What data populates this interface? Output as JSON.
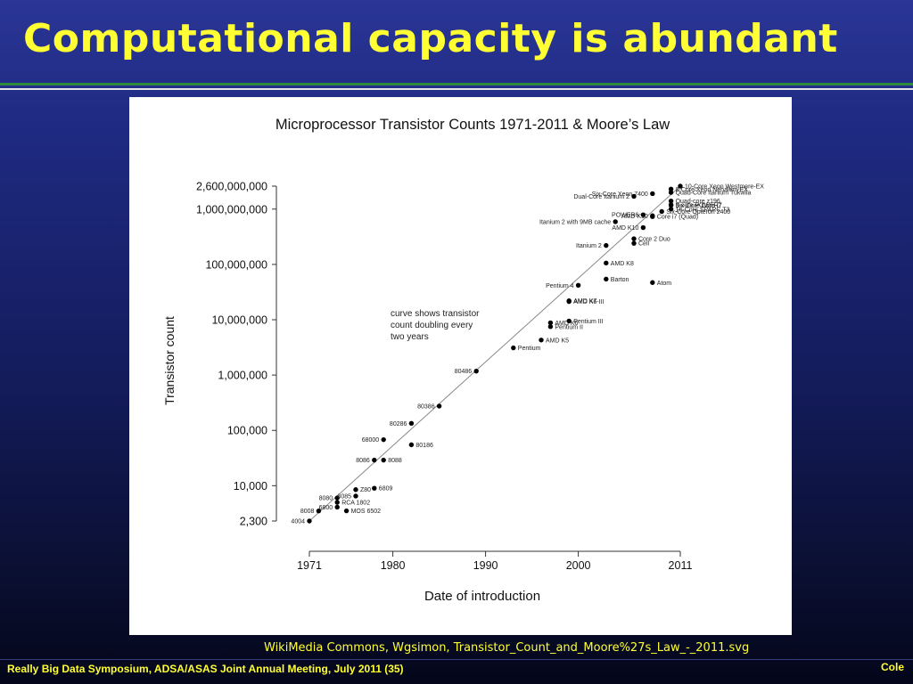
{
  "slide": {
    "title": "Computational capacity is abundant",
    "credit": "WikiMedia Commons, Wgsimon, Transistor_Count_and_Moore%27s_Law_-_2011.svg",
    "footer_left": "Really Big Data Symposium, ADSA/ASAS Joint Annual Meeting, July 2011 (35)",
    "footer_right": "Cole",
    "colors": {
      "title": "#ffff33",
      "background": "#1e2a80",
      "rule_green": "#2e8b3d"
    }
  },
  "chart_data": {
    "type": "scatter",
    "title": "Microprocessor Transistor Counts 1971-2011 & Moore’s Law",
    "xlabel": "Date of introduction",
    "ylabel": "Transistor count",
    "x_scale": "linear",
    "y_scale": "log",
    "xlim": [
      1971,
      2011
    ],
    "ylim": [
      2300,
      2600000000
    ],
    "x_ticks": [
      1971,
      1980,
      1990,
      2000,
      2011
    ],
    "y_ticks": [
      {
        "value": 2300,
        "label": "2,300"
      },
      {
        "value": 10000,
        "label": "10,000"
      },
      {
        "value": 100000,
        "label": "100,000"
      },
      {
        "value": 1000000,
        "label": "1,000,000"
      },
      {
        "value": 10000000,
        "label": "10,000,000"
      },
      {
        "value": 100000000,
        "label": "100,000,000"
      },
      {
        "value": 1000000000,
        "label": "1,000,000,000"
      },
      {
        "value": 2600000000,
        "label": "2,600,000,000"
      }
    ],
    "annotation": [
      "curve shows transistor",
      "count doubling every",
      "two years"
    ],
    "trend_line": {
      "x": [
        1971,
        2011
      ],
      "y": [
        2300,
        2600000000
      ]
    },
    "points": [
      {
        "label": "4004",
        "x": 1971,
        "y": 2300
      },
      {
        "label": "8008",
        "x": 1972,
        "y": 3500
      },
      {
        "label": "RCA 1802",
        "x": 1974,
        "y": 5000
      },
      {
        "label": "8080",
        "x": 1974,
        "y": 6000
      },
      {
        "label": "6800",
        "x": 1974,
        "y": 4100
      },
      {
        "label": "MOS 6502",
        "x": 1975,
        "y": 3510
      },
      {
        "label": "8085",
        "x": 1976,
        "y": 6500
      },
      {
        "label": "Z80",
        "x": 1976,
        "y": 8500
      },
      {
        "label": "6809",
        "x": 1978,
        "y": 9000
      },
      {
        "label": "8086",
        "x": 1978,
        "y": 29000
      },
      {
        "label": "8088",
        "x": 1979,
        "y": 29000
      },
      {
        "label": "68000",
        "x": 1979,
        "y": 68000
      },
      {
        "label": "80186",
        "x": 1982,
        "y": 55000
      },
      {
        "label": "80286",
        "x": 1982,
        "y": 134000
      },
      {
        "label": "80386",
        "x": 1985,
        "y": 275000
      },
      {
        "label": "80486",
        "x": 1989,
        "y": 1180000
      },
      {
        "label": "Pentium",
        "x": 1993,
        "y": 3100000
      },
      {
        "label": "AMD K5",
        "x": 1996,
        "y": 4300000
      },
      {
        "label": "Pentium II",
        "x": 1997,
        "y": 7500000
      },
      {
        "label": "AMD K6",
        "x": 1997,
        "y": 8800000
      },
      {
        "label": "Pentium III",
        "x": 1999,
        "y": 9500000
      },
      {
        "label": "AMD K6-III",
        "x": 1999,
        "y": 21300000
      },
      {
        "label": "AMD K7",
        "x": 1999,
        "y": 22000000
      },
      {
        "label": "Pentium 4",
        "x": 2000,
        "y": 42000000
      },
      {
        "label": "Barton",
        "x": 2003,
        "y": 54300000
      },
      {
        "label": "AMD K8",
        "x": 2003,
        "y": 105900000
      },
      {
        "label": "Itanium 2",
        "x": 2003,
        "y": 220000000
      },
      {
        "label": "Cell",
        "x": 2006,
        "y": 241000000
      },
      {
        "label": "Core 2 Duo",
        "x": 2006,
        "y": 291000000
      },
      {
        "label": "Atom",
        "x": 2008,
        "y": 47000000
      },
      {
        "label": "AMD K10",
        "x": 2007,
        "y": 463000000
      },
      {
        "label": "Itanium 2 with 9MB cache",
        "x": 2004,
        "y": 592000000
      },
      {
        "label": "POWER6",
        "x": 2007,
        "y": 789000000
      },
      {
        "label": "Core i7 (Quad)",
        "x": 2008,
        "y": 731000000
      },
      {
        "label": "Six-Core Opteron 2400",
        "x": 2009,
        "y": 904000000
      },
      {
        "label": "AMD K10",
        "x": 2008,
        "y": 758000000
      },
      {
        "label": "Dual-Core Itanium 2",
        "x": 2006,
        "y": 1700000000
      },
      {
        "label": "Six-Core Xeon 7400",
        "x": 2008,
        "y": 1900000000
      },
      {
        "label": "Six-Core Core i7",
        "x": 2010,
        "y": 1170000000
      },
      {
        "label": "8-Core Xeon Nehalem-EX",
        "x": 2010,
        "y": 2300000000
      },
      {
        "label": "Quad-Core Itanium Tukwila",
        "x": 2010,
        "y": 2000000000
      },
      {
        "label": "Quad-core z196",
        "x": 2010,
        "y": 1400000000
      },
      {
        "label": "8-core POWER7",
        "x": 2010,
        "y": 1200000000
      },
      {
        "label": "10-Core Xeon Westmere-EX",
        "x": 2011,
        "y": 2600000000
      },
      {
        "label": "16-Core SPARC T3",
        "x": 2010,
        "y": 1000000000
      }
    ]
  }
}
